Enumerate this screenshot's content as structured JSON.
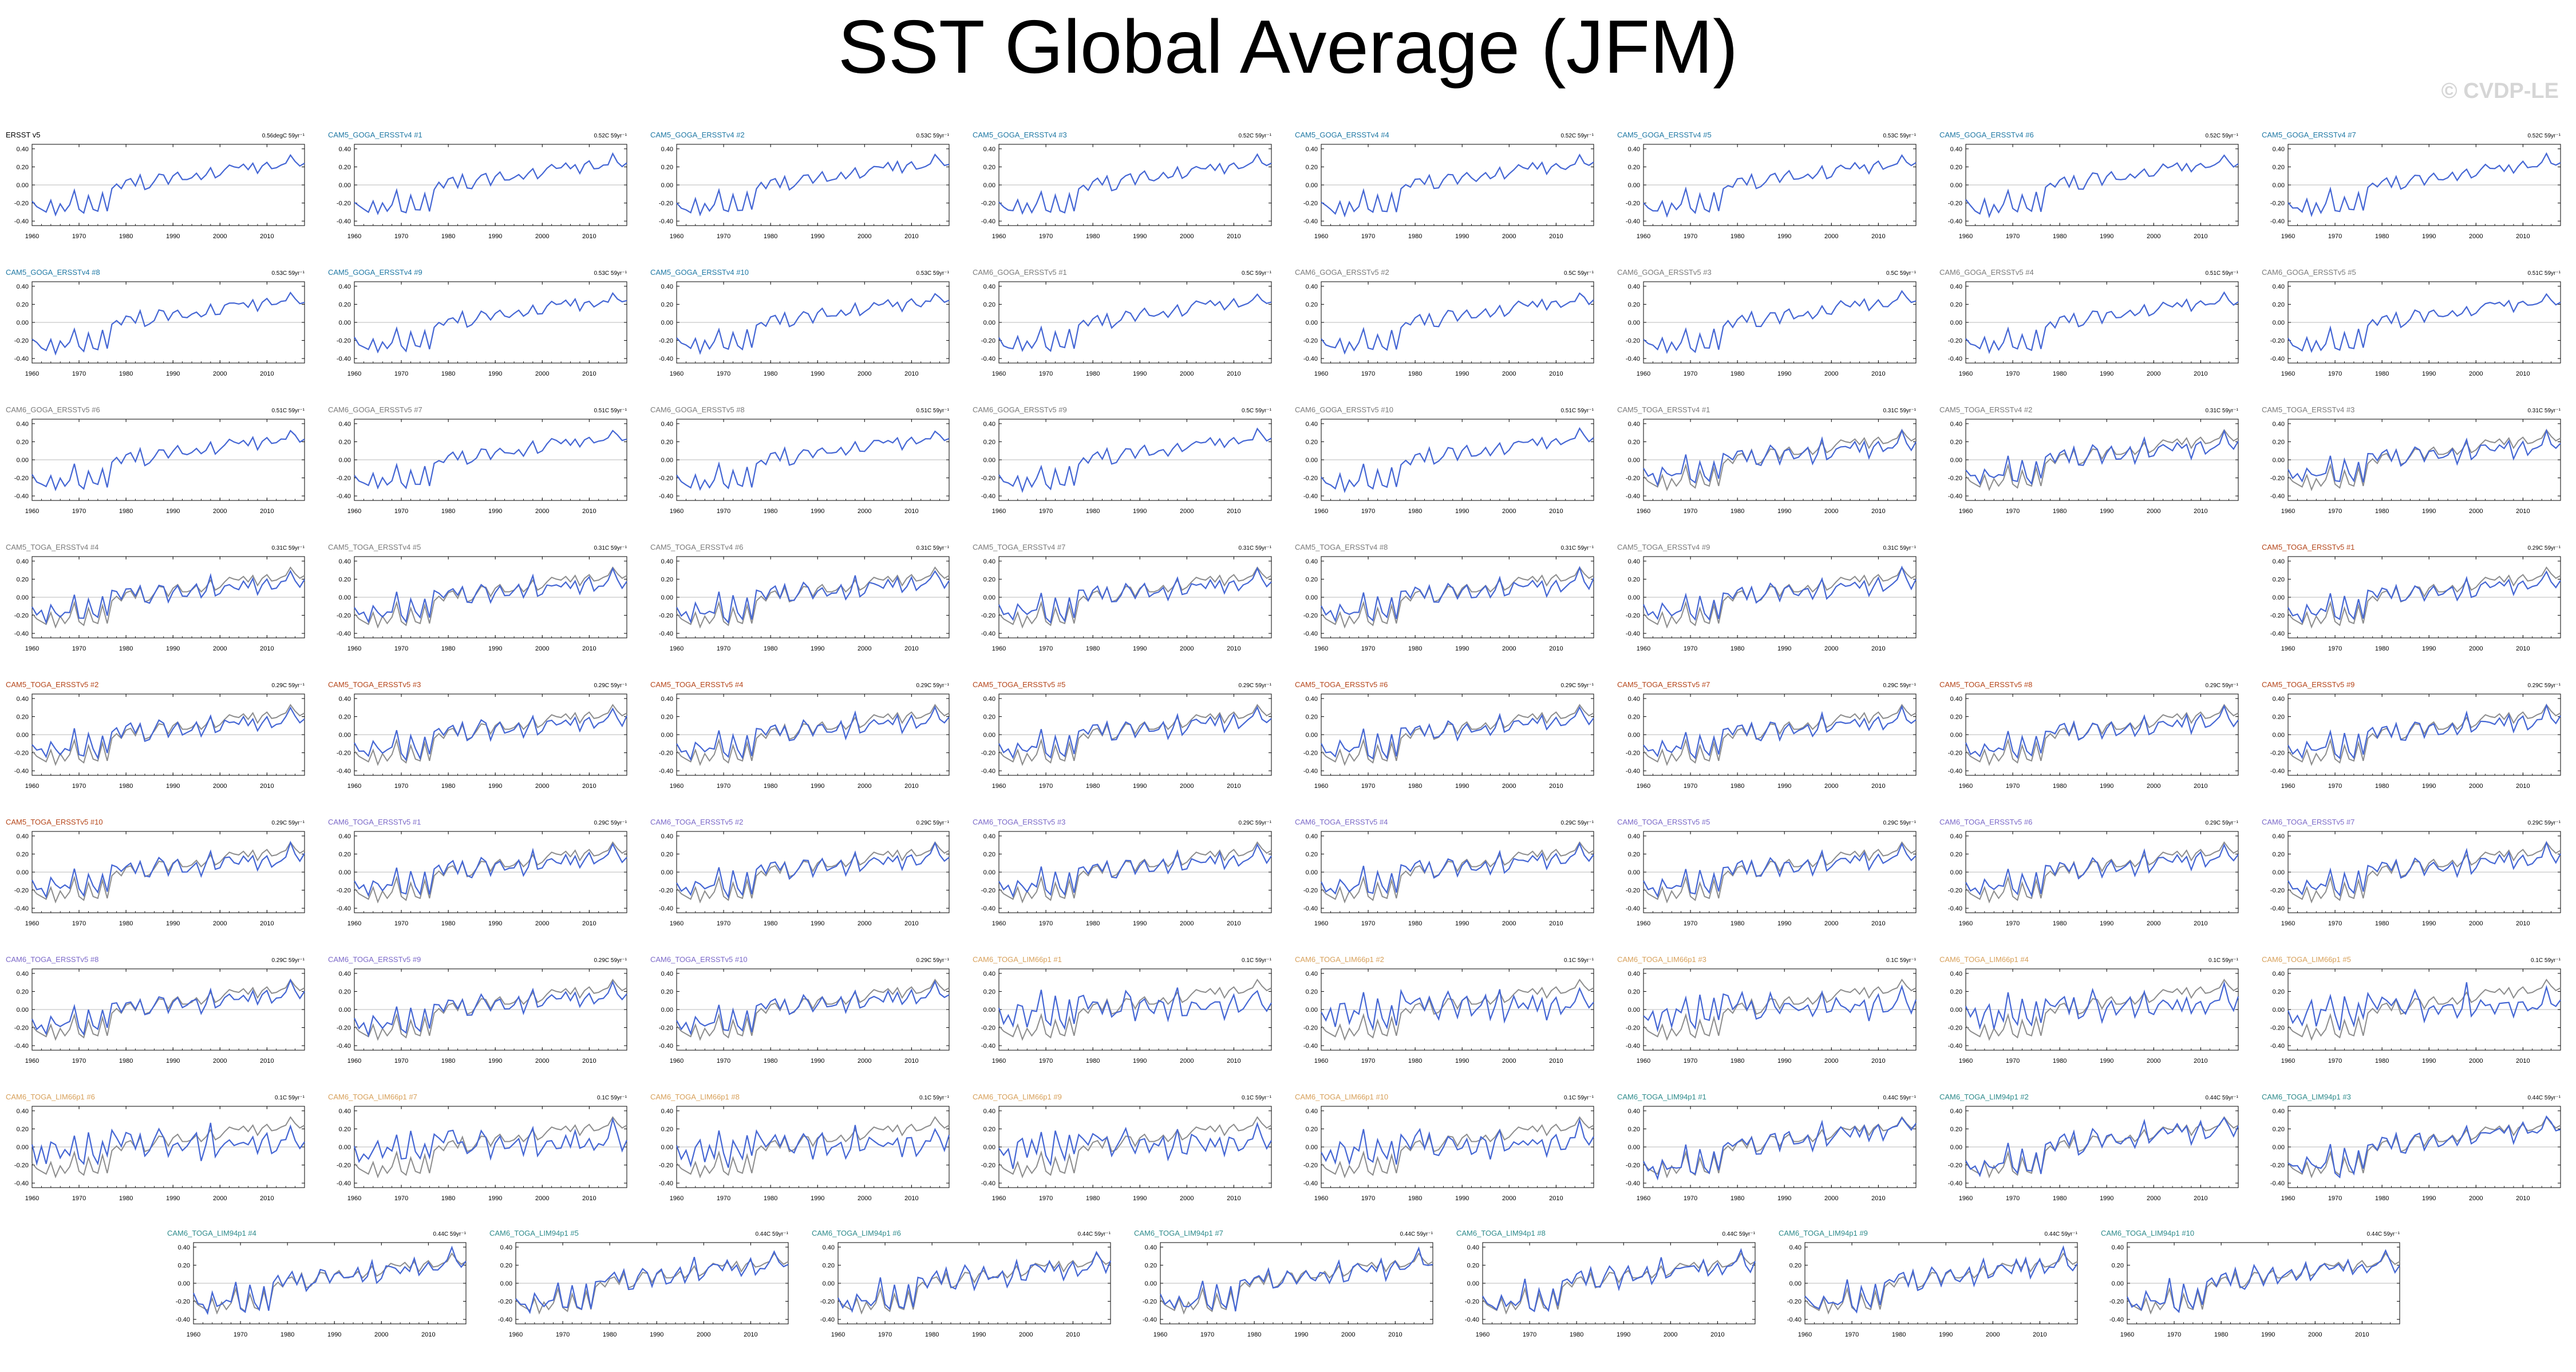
{
  "page": {
    "title": "SST Global Average (JFM)",
    "watermark": "© CVDP-LE"
  },
  "chart_data": {
    "type": "line",
    "x_ticks": [
      1960,
      1970,
      1980,
      1990,
      2000,
      2010
    ],
    "y_ticks": [
      "0.40",
      "0.20",
      "0.00",
      "-0.20",
      "-0.40"
    ],
    "xlim": [
      1960,
      2018
    ],
    "ylim": [
      -0.45,
      0.45
    ],
    "colors": {
      "observed": "#8c8c8c",
      "simulated": "#4466d4",
      "zero_line": "#c8c8c8"
    },
    "base_anomaly": [
      -0.18,
      -0.24,
      -0.27,
      -0.3,
      -0.17,
      -0.33,
      -0.21,
      -0.29,
      -0.22,
      -0.06,
      -0.27,
      -0.31,
      -0.12,
      -0.27,
      -0.29,
      -0.09,
      -0.29,
      -0.04,
      0.01,
      -0.04,
      0.05,
      0.07,
      -0.01,
      0.11,
      -0.05,
      -0.03,
      0.04,
      0.12,
      0.11,
      0.01,
      0.1,
      0.14,
      0.06,
      0.06,
      0.08,
      0.13,
      0.06,
      0.11,
      0.19,
      0.08,
      0.11,
      0.17,
      0.22,
      0.2,
      0.19,
      0.23,
      0.17,
      0.24,
      0.13,
      0.21,
      0.25,
      0.18,
      0.19,
      0.22,
      0.24,
      0.33,
      0.26,
      0.21,
      0.24
    ],
    "detrended_anomaly": [
      -0.01,
      -0.14,
      -0.04,
      -0.21,
      0.02,
      0.06,
      -0.18,
      0.02,
      -0.08,
      0.18,
      -0.13,
      -0.19,
      0.14,
      -0.06,
      -0.18,
      0.09,
      -0.15,
      0.17,
      0.11,
      0.02,
      0.13,
      0.15,
      0.01,
      0.12,
      -0.06,
      -0.06,
      0.04,
      0.18,
      0.1,
      -0.09,
      0.05,
      0.11,
      -0.04,
      -0.02,
      0.06,
      0.11,
      -0.12,
      0.04,
      0.27,
      -0.08,
      -0.04,
      0.1,
      0.06,
      0.04,
      0.01,
      0.12,
      0.03,
      0.14,
      -0.08,
      0.06,
      0.14,
      -0.05,
      0.02,
      0.06,
      0.12,
      0.28,
      0.1,
      0.0,
      0.12
    ],
    "panels": [
      {
        "name": "ERSST v5",
        "trend": "0.56degC 59yr⁻¹",
        "title_color": "#000000",
        "kind": "obs"
      },
      {
        "name": "CAM5_GOGA_ERSSTv4 #1",
        "trend": "0.52C 59yr⁻¹",
        "title_color": "#1f78a4",
        "kind": "goga"
      },
      {
        "name": "CAM5_GOGA_ERSSTv4 #2",
        "trend": "0.53C 59yr⁻¹",
        "title_color": "#1f78a4",
        "kind": "goga"
      },
      {
        "name": "CAM5_GOGA_ERSSTv4 #3",
        "trend": "0.52C 59yr⁻¹",
        "title_color": "#1f78a4",
        "kind": "goga"
      },
      {
        "name": "CAM5_GOGA_ERSSTv4 #4",
        "trend": "0.52C 59yr⁻¹",
        "title_color": "#1f78a4",
        "kind": "goga"
      },
      {
        "name": "CAM5_GOGA_ERSSTv4 #5",
        "trend": "0.53C 59yr⁻¹",
        "title_color": "#1f78a4",
        "kind": "goga"
      },
      {
        "name": "CAM5_GOGA_ERSSTv4 #6",
        "trend": "0.52C 59yr⁻¹",
        "title_color": "#1f78a4",
        "kind": "goga"
      },
      {
        "name": "CAM5_GOGA_ERSSTv4 #7",
        "trend": "0.52C 59yr⁻¹",
        "title_color": "#1f78a4",
        "kind": "goga"
      },
      {
        "name": "CAM5_GOGA_ERSSTv4 #8",
        "trend": "0.53C 59yr⁻¹",
        "title_color": "#1f78a4",
        "kind": "goga"
      },
      {
        "name": "CAM5_GOGA_ERSSTv4 #9",
        "trend": "0.53C 59yr⁻¹",
        "title_color": "#1f78a4",
        "kind": "goga"
      },
      {
        "name": "CAM5_GOGA_ERSSTv4 #10",
        "trend": "0.53C 59yr⁻¹",
        "title_color": "#1f78a4",
        "kind": "goga"
      },
      {
        "name": "CAM6_GOGA_ERSSTv5 #1",
        "trend": "0.5C 59yr⁻¹",
        "title_color": "#7a7a7a",
        "kind": "goga"
      },
      {
        "name": "CAM6_GOGA_ERSSTv5 #2",
        "trend": "0.5C 59yr⁻¹",
        "title_color": "#7a7a7a",
        "kind": "goga"
      },
      {
        "name": "CAM6_GOGA_ERSSTv5 #3",
        "trend": "0.5C 59yr⁻¹",
        "title_color": "#7a7a7a",
        "kind": "goga"
      },
      {
        "name": "CAM6_GOGA_ERSSTv5 #4",
        "trend": "0.51C 59yr⁻¹",
        "title_color": "#7a7a7a",
        "kind": "goga"
      },
      {
        "name": "CAM6_GOGA_ERSSTv5 #5",
        "trend": "0.51C 59yr⁻¹",
        "title_color": "#7a7a7a",
        "kind": "goga"
      },
      {
        "name": "CAM6_GOGA_ERSSTv5 #6",
        "trend": "0.51C 59yr⁻¹",
        "title_color": "#7a7a7a",
        "kind": "goga"
      },
      {
        "name": "CAM6_GOGA_ERSSTv5 #7",
        "trend": "0.51C 59yr⁻¹",
        "title_color": "#7a7a7a",
        "kind": "goga"
      },
      {
        "name": "CAM6_GOGA_ERSSTv5 #8",
        "trend": "0.51C 59yr⁻¹",
        "title_color": "#7a7a7a",
        "kind": "goga"
      },
      {
        "name": "CAM6_GOGA_ERSSTv5 #9",
        "trend": "0.5C 59yr⁻¹",
        "title_color": "#7a7a7a",
        "kind": "goga"
      },
      {
        "name": "CAM6_GOGA_ERSSTv5 #10",
        "trend": "0.51C 59yr⁻¹",
        "title_color": "#7a7a7a",
        "kind": "goga"
      },
      {
        "name": "CAM5_TOGA_ERSSTv4 #1",
        "trend": "0.31C 59yr⁻¹",
        "title_color": "#7a7a7a",
        "kind": "toga"
      },
      {
        "name": "CAM5_TOGA_ERSSTv4 #2",
        "trend": "0.31C 59yr⁻¹",
        "title_color": "#7a7a7a",
        "kind": "toga"
      },
      {
        "name": "CAM5_TOGA_ERSSTv4 #3",
        "trend": "0.31C 59yr⁻¹",
        "title_color": "#7a7a7a",
        "kind": "toga"
      },
      {
        "name": "CAM5_TOGA_ERSSTv4 #4",
        "trend": "0.31C 59yr⁻¹",
        "title_color": "#7a7a7a",
        "kind": "toga"
      },
      {
        "name": "CAM5_TOGA_ERSSTv4 #5",
        "trend": "0.31C 59yr⁻¹",
        "title_color": "#7a7a7a",
        "kind": "toga"
      },
      {
        "name": "CAM5_TOGA_ERSSTv4 #6",
        "trend": "0.31C 59yr⁻¹",
        "title_color": "#7a7a7a",
        "kind": "toga"
      },
      {
        "name": "CAM5_TOGA_ERSSTv4 #7",
        "trend": "0.31C 59yr⁻¹",
        "title_color": "#7a7a7a",
        "kind": "toga"
      },
      {
        "name": "CAM5_TOGA_ERSSTv4 #8",
        "trend": "0.31C 59yr⁻¹",
        "title_color": "#7a7a7a",
        "kind": "toga"
      },
      {
        "name": "CAM5_TOGA_ERSSTv4 #9",
        "trend": "0.31C 59yr⁻¹",
        "title_color": "#7a7a7a",
        "kind": "toga"
      },
      {
        "name": "CAM5_TOGA_ERSSTv5 #1",
        "trend": "0.29C 59yr⁻¹",
        "title_color": "#b5461a",
        "kind": "toga"
      },
      {
        "name": "CAM5_TOGA_ERSSTv5 #2",
        "trend": "0.29C 59yr⁻¹",
        "title_color": "#b5461a",
        "kind": "toga"
      },
      {
        "name": "CAM5_TOGA_ERSSTv5 #3",
        "trend": "0.29C 59yr⁻¹",
        "title_color": "#b5461a",
        "kind": "toga"
      },
      {
        "name": "CAM5_TOGA_ERSSTv5 #4",
        "trend": "0.29C 59yr⁻¹",
        "title_color": "#b5461a",
        "kind": "toga"
      },
      {
        "name": "CAM5_TOGA_ERSSTv5 #5",
        "trend": "0.29C 59yr⁻¹",
        "title_color": "#b5461a",
        "kind": "toga"
      },
      {
        "name": "CAM5_TOGA_ERSSTv5 #6",
        "trend": "0.29C 59yr⁻¹",
        "title_color": "#b5461a",
        "kind": "toga"
      },
      {
        "name": "CAM5_TOGA_ERSSTv5 #7",
        "trend": "0.29C 59yr⁻¹",
        "title_color": "#b5461a",
        "kind": "toga"
      },
      {
        "name": "CAM5_TOGA_ERSSTv5 #8",
        "trend": "0.29C 59yr⁻¹",
        "title_color": "#b5461a",
        "kind": "toga"
      },
      {
        "name": "CAM5_TOGA_ERSSTv5 #9",
        "trend": "0.29C 59yr⁻¹",
        "title_color": "#b5461a",
        "kind": "toga"
      },
      {
        "name": "CAM5_TOGA_ERSSTv5 #10",
        "trend": "0.29C 59yr⁻¹",
        "title_color": "#b5461a",
        "kind": "toga"
      },
      {
        "name": "CAM6_TOGA_ERSSTv5 #1",
        "trend": "0.29C 59yr⁻¹",
        "title_color": "#7b68c8",
        "kind": "toga"
      },
      {
        "name": "CAM6_TOGA_ERSSTv5 #2",
        "trend": "0.29C 59yr⁻¹",
        "title_color": "#7b68c8",
        "kind": "toga"
      },
      {
        "name": "CAM6_TOGA_ERSSTv5 #3",
        "trend": "0.29C 59yr⁻¹",
        "title_color": "#7b68c8",
        "kind": "toga"
      },
      {
        "name": "CAM6_TOGA_ERSSTv5 #4",
        "trend": "0.29C 59yr⁻¹",
        "title_color": "#7b68c8",
        "kind": "toga"
      },
      {
        "name": "CAM6_TOGA_ERSSTv5 #5",
        "trend": "0.29C 59yr⁻¹",
        "title_color": "#7b68c8",
        "kind": "toga"
      },
      {
        "name": "CAM6_TOGA_ERSSTv5 #6",
        "trend": "0.29C 59yr⁻¹",
        "title_color": "#7b68c8",
        "kind": "toga"
      },
      {
        "name": "CAM6_TOGA_ERSSTv5 #7",
        "trend": "0.29C 59yr⁻¹",
        "title_color": "#7b68c8",
        "kind": "toga"
      },
      {
        "name": "CAM6_TOGA_ERSSTv5 #8",
        "trend": "0.29C 59yr⁻¹",
        "title_color": "#7b68c8",
        "kind": "toga"
      },
      {
        "name": "CAM6_TOGA_ERSSTv5 #9",
        "trend": "0.29C 59yr⁻¹",
        "title_color": "#7b68c8",
        "kind": "toga"
      },
      {
        "name": "CAM6_TOGA_ERSSTv5 #10",
        "trend": "0.29C 59yr⁻¹",
        "title_color": "#7b68c8",
        "kind": "toga"
      },
      {
        "name": "CAM6_TOGA_LIM66p1 #1",
        "trend": "0.1C 59yr⁻¹",
        "title_color": "#d7a05a",
        "kind": "lim66"
      },
      {
        "name": "CAM6_TOGA_LIM66p1 #2",
        "trend": "0.1C 59yr⁻¹",
        "title_color": "#d7a05a",
        "kind": "lim66"
      },
      {
        "name": "CAM6_TOGA_LIM66p1 #3",
        "trend": "0.1C 59yr⁻¹",
        "title_color": "#d7a05a",
        "kind": "lim66"
      },
      {
        "name": "CAM6_TOGA_LIM66p1 #4",
        "trend": "0.1C 59yr⁻¹",
        "title_color": "#d7a05a",
        "kind": "lim66"
      },
      {
        "name": "CAM6_TOGA_LIM66p1 #5",
        "trend": "0.1C 59yr⁻¹",
        "title_color": "#d7a05a",
        "kind": "lim66"
      },
      {
        "name": "CAM6_TOGA_LIM66p1 #6",
        "trend": "0.1C 59yr⁻¹",
        "title_color": "#d7a05a",
        "kind": "lim66"
      },
      {
        "name": "CAM6_TOGA_LIM66p1 #7",
        "trend": "0.1C 59yr⁻¹",
        "title_color": "#d7a05a",
        "kind": "lim66"
      },
      {
        "name": "CAM6_TOGA_LIM66p1 #8",
        "trend": "0.1C 59yr⁻¹",
        "title_color": "#d7a05a",
        "kind": "lim66"
      },
      {
        "name": "CAM6_TOGA_LIM66p1 #9",
        "trend": "0.1C 59yr⁻¹",
        "title_color": "#d7a05a",
        "kind": "lim66"
      },
      {
        "name": "CAM6_TOGA_LIM66p1 #10",
        "trend": "0.1C 59yr⁻¹",
        "title_color": "#d7a05a",
        "kind": "lim66"
      },
      {
        "name": "CAM6_TOGA_LIM94p1 #1",
        "trend": "0.44C 59yr⁻¹",
        "title_color": "#2e8b8b",
        "kind": "lim94"
      },
      {
        "name": "CAM6_TOGA_LIM94p1 #2",
        "trend": "0.44C 59yr⁻¹",
        "title_color": "#2e8b8b",
        "kind": "lim94"
      },
      {
        "name": "CAM6_TOGA_LIM94p1 #3",
        "trend": "0.44C 59yr⁻¹",
        "title_color": "#2e8b8b",
        "kind": "lim94"
      },
      {
        "name": "CAM6_TOGA_LIM94p1 #4",
        "trend": "0.44C 59yr⁻¹",
        "title_color": "#2e8b8b",
        "kind": "lim94"
      },
      {
        "name": "CAM6_TOGA_LIM94p1 #5",
        "trend": "0.44C 59yr⁻¹",
        "title_color": "#2e8b8b",
        "kind": "lim94"
      },
      {
        "name": "CAM6_TOGA_LIM94p1 #6",
        "trend": "0.44C 59yr⁻¹",
        "title_color": "#2e8b8b",
        "kind": "lim94"
      },
      {
        "name": "CAM6_TOGA_LIM94p1 #7",
        "trend": "0.44C 59yr⁻¹",
        "title_color": "#2e8b8b",
        "kind": "lim94"
      },
      {
        "name": "CAM6_TOGA_LIM94p1 #8",
        "trend": "0.44C 59yr⁻¹",
        "title_color": "#2e8b8b",
        "kind": "lim94"
      },
      {
        "name": "CAM6_TOGA_LIM94p1 #9",
        "trend": "0.44C 59yr⁻¹",
        "title_color": "#2e8b8b",
        "kind": "lim94"
      },
      {
        "name": "CAM6_TOGA_LIM94p1 #10",
        "trend": "0.44C 59yr⁻¹",
        "title_color": "#2e8b8b",
        "kind": "lim94"
      }
    ]
  }
}
